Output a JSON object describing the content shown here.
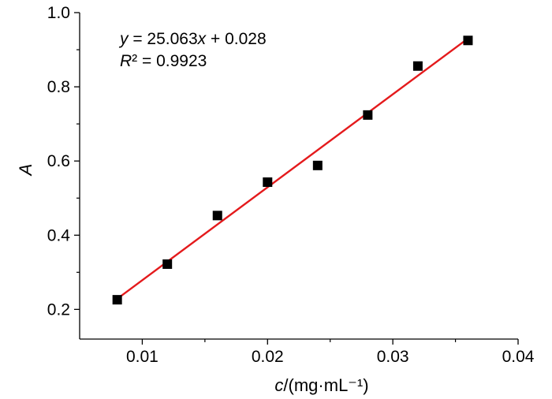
{
  "chart_data": {
    "type": "scatter",
    "x": [
      0.008,
      0.012,
      0.016,
      0.02,
      0.024,
      0.028,
      0.032,
      0.036
    ],
    "y": [
      0.226,
      0.322,
      0.453,
      0.543,
      0.588,
      0.724,
      0.856,
      0.925
    ],
    "fit": {
      "slope": 25.063,
      "intercept": 0.028,
      "color": "#e41a1c"
    },
    "marker_color": "#000000",
    "xlim": [
      0.005,
      0.04
    ],
    "ylim": [
      0.12,
      1.0
    ],
    "xticks": [
      "0.01",
      "0.02",
      "0.03",
      "0.04"
    ],
    "yticks": [
      "0.2",
      "0.4",
      "0.6",
      "0.8",
      "1.0"
    ],
    "xlabel_var": "c",
    "xlabel_unit": "/(mg·mL⁻¹)",
    "ylabel": "A",
    "equation": {
      "y": "y",
      "eq": " = 25.063",
      "x": "x",
      "rest": " + 0.028"
    },
    "r2": {
      "var": "R",
      "rest": "² = 0.9923"
    },
    "grid": false
  }
}
